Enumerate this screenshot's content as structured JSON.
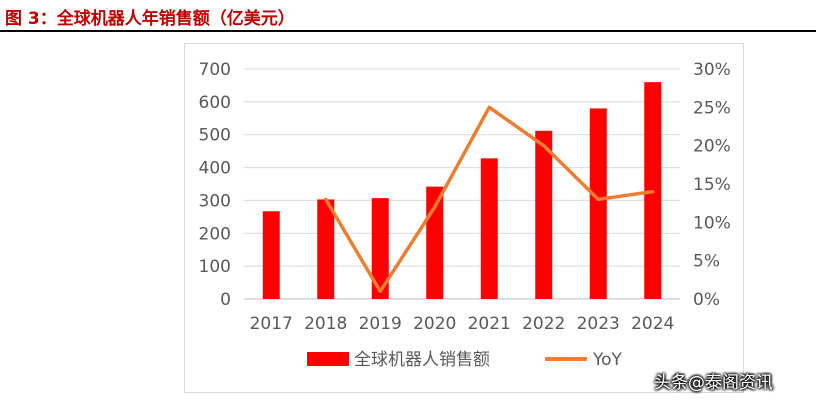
{
  "header": {
    "title": "图 3：全球机器人年销售额（亿美元）"
  },
  "watermark": "头条@泰阁资讯",
  "chart_data": {
    "type": "bar+line",
    "categories": [
      "2017",
      "2018",
      "2019",
      "2020",
      "2021",
      "2022",
      "2023",
      "2024"
    ],
    "series": [
      {
        "name": "全球机器人销售额",
        "type": "bar",
        "axis": "left",
        "values": [
          267,
          303,
          307,
          342,
          428,
          512,
          580,
          660
        ],
        "color": "#ff0000"
      },
      {
        "name": "YoY",
        "type": "line",
        "axis": "right",
        "values": [
          null,
          13.0,
          1.0,
          12.0,
          25.0,
          20.0,
          13.0,
          14.0
        ],
        "color": "#ed7d31"
      }
    ],
    "y_left": {
      "ylim": [
        0,
        700
      ],
      "ticks": [
        "0",
        "100",
        "200",
        "300",
        "400",
        "500",
        "600",
        "700"
      ]
    },
    "y_right": {
      "ylim": [
        0,
        30
      ],
      "ticks": [
        "0%",
        "5%",
        "10%",
        "15%",
        "20%",
        "25%",
        "30%"
      ]
    },
    "grid": true,
    "legend": "bottom"
  }
}
